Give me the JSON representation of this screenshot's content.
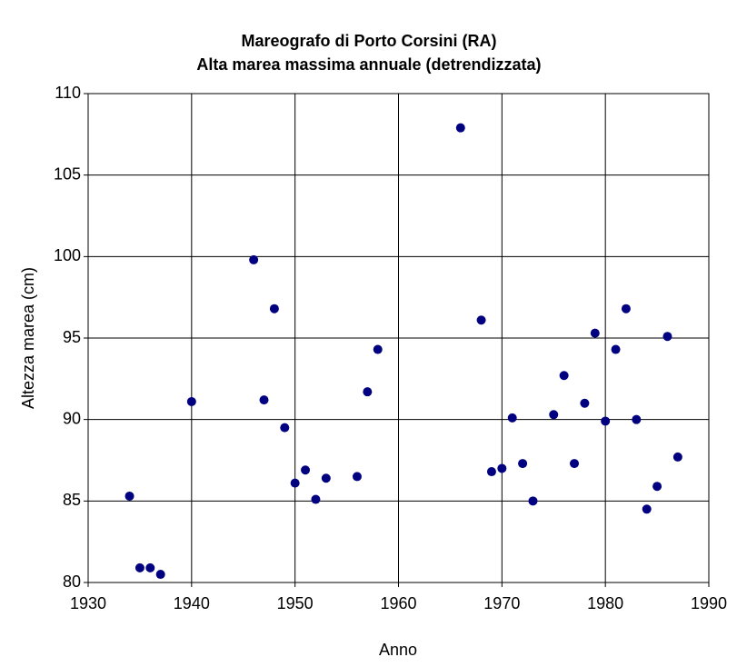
{
  "chart_data": {
    "type": "scatter",
    "title": "Mareografo di Porto Corsini (RA)",
    "subtitle": "Alta marea massima annuale (detrendizzata)",
    "x_label": "Anno",
    "y_label": "Altezza marea (cm)",
    "color": "#000080",
    "grid": true,
    "xlim": [
      1930,
      1990
    ],
    "xticks": [
      1930,
      1940,
      1950,
      1960,
      1970,
      1980,
      1990
    ],
    "ylim": [
      80,
      110
    ],
    "yticks": [
      80,
      85,
      90,
      95,
      100,
      105,
      110
    ],
    "x": [
      1934,
      1935,
      1936,
      1937,
      1940,
      1946,
      1947,
      1948,
      1949,
      1950,
      1951,
      1952,
      1953,
      1956,
      1957,
      1958,
      1966,
      1968,
      1969,
      1970,
      1971,
      1972,
      1973,
      1975,
      1976,
      1977,
      1978,
      1979,
      1980,
      1981,
      1982,
      1983,
      1984,
      1985,
      1986,
      1987
    ],
    "values": [
      85.3,
      80.9,
      80.9,
      80.5,
      91.1,
      99.8,
      91.2,
      96.8,
      89.5,
      86.1,
      86.9,
      85.1,
      86.4,
      86.5,
      91.7,
      94.3,
      107.9,
      96.1,
      86.8,
      87.0,
      90.1,
      87.3,
      85.0,
      90.3,
      92.7,
      87.3,
      91.0,
      95.3,
      89.9,
      94.3,
      96.8,
      90.0,
      84.5,
      85.9,
      95.1,
      87.7
    ]
  }
}
